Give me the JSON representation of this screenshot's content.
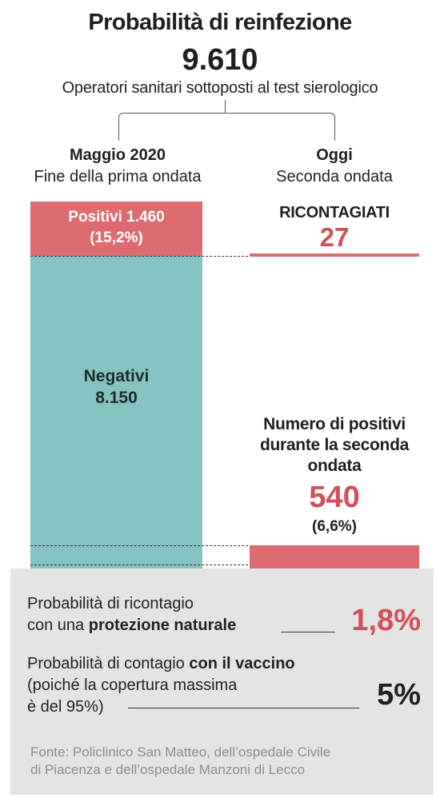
{
  "title": "Probabilità di reinfezione",
  "total": "9.610",
  "subtitle": "Operatori sanitari sottoposti al test sierologico",
  "left_column": {
    "head_bold": "Maggio 2020",
    "head_sub": "Fine della prima ondata"
  },
  "right_column": {
    "head_bold": "Oggi",
    "head_sub": "Seconda ondata"
  },
  "chart_data": {
    "type": "bar",
    "total": 9610,
    "left_stack": [
      {
        "label": "Positivi 1.460",
        "pct_label": "(15,2%)",
        "value": 1460,
        "color": "#dd6b70"
      },
      {
        "label": "Negativi",
        "value_label": "8.150",
        "value": 8150,
        "color": "#86c3c3"
      }
    ],
    "right_bars": [
      {
        "label": "RICONTAGIATI",
        "value_label": "27",
        "value": 27,
        "color": "#dd6b70"
      },
      {
        "label_lines": [
          "Numero di positivi",
          "durante la seconda",
          "ondata"
        ],
        "value_label": "540",
        "pct_label": "(6,6%)",
        "value": 540,
        "color": "#dd6b70"
      }
    ]
  },
  "probabilities": {
    "natural": {
      "line1": "Probabilità di ricontagio",
      "line2_prefix": "con una ",
      "line2_bold": "protezione naturale",
      "value": "1,8%",
      "color": "#d34f5a"
    },
    "vaccine": {
      "line1_prefix": "Probabilità di contagio ",
      "line1_bold": "con il vaccino",
      "line2": "(poiché la copertura massima",
      "line3": "è del 95%)",
      "value": "5%"
    }
  },
  "source": {
    "line1": "Fonte: Policlinico San Matteo, dell’ospedale Civile",
    "line2": "di Piacenza e dell’ospedale Manzoni di Lecco"
  },
  "colors": {
    "positive": "#dd6b70",
    "negative": "#86c3c3",
    "accent_text": "#d34f5a",
    "panel": "#e4e4e4"
  }
}
